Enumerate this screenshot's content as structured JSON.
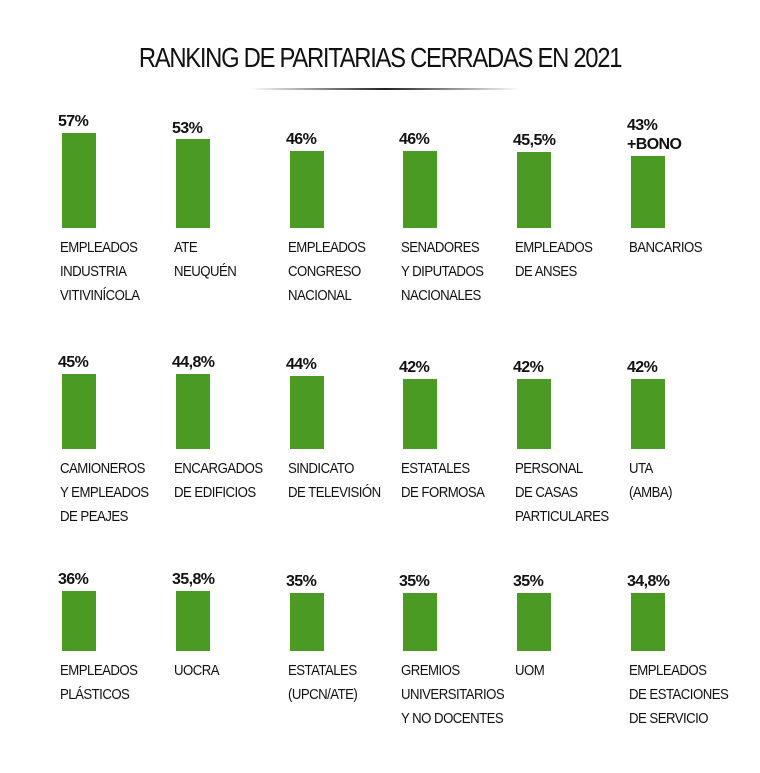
{
  "chart_data": {
    "type": "bar",
    "title": "RANKING DE PARITARIAS CERRADAS EN 2021",
    "color": "#4a9a23",
    "categories": [
      "EMPLEADOS\nINDUSTRIA\nVITIVINÍCOLA",
      "ATE\nNEUQUÉN",
      "EMPLEADOS\nCONGRESO\nNACIONAL",
      "SENADORES\nY DIPUTADOS\nNACIONALES",
      "EMPLEADOS\nDE ANSES",
      "BANCARIOS",
      "CAMIONEROS\nY EMPLEADOS\nDE PEAJES",
      "ENCARGADOS\nDE EDIFICIOS",
      "SINDICATO\nDE TELEVISIÓN",
      "ESTATALES\nDE FORMOSA",
      "PERSONAL\nDE CASAS\nPARTICULARES",
      "UTA\n(AMBA)",
      "EMPLEADOS\nPLÁSTICOS",
      "UOCRA",
      "ESTATALES\n(UPCN/ATE)",
      "GREMIOS\nUNIVERSITARIOS\nY NO DOCENTES",
      "UOM",
      "EMPLEADOS\nDE ESTACIONES\nDE SERVICIO"
    ],
    "values": [
      57,
      53,
      46,
      46,
      45.5,
      43,
      45,
      44.8,
      44,
      42,
      42,
      42,
      36,
      35.8,
      35,
      35,
      35,
      34.8
    ],
    "value_labels": [
      "57%",
      "53%",
      "46%",
      "46%",
      "45,5%",
      "43%\n+BONO",
      "45%",
      "44,8%",
      "44%",
      "42%",
      "42%",
      "42%",
      "36%",
      "35,8%",
      "35%",
      "35%",
      "35%",
      "34,8%"
    ]
  }
}
